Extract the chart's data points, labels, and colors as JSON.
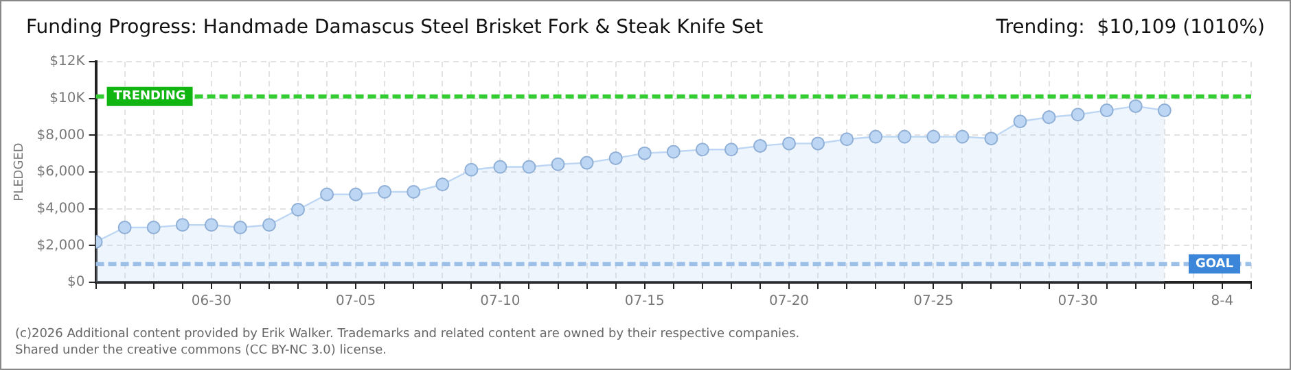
{
  "chart_data": {
    "type": "area",
    "title": "Funding Progress: Handmade Damascus Steel Brisket Fork & Steak Knife Set",
    "subtitle": "Trending:  $10,109 (1010%)",
    "ylabel": "PLEDGED",
    "x": [
      "--06-26",
      "--06-27",
      "--06-28",
      "--06-29",
      "--06-30",
      "--07-01",
      "--07-02",
      "--07-03",
      "--07-04",
      "--07-05",
      "--07-06",
      "--07-07",
      "--07-08",
      "--07-09",
      "--07-10",
      "--07-11",
      "--07-12",
      "--07-13",
      "--07-14",
      "--07-15",
      "--07-16",
      "--07-17",
      "--07-18",
      "--07-19",
      "--07-20",
      "--07-21",
      "--07-22",
      "--07-23",
      "--07-24",
      "--07-25",
      "--07-26",
      "--07-27",
      "--07-28",
      "--07-29",
      "--07-30",
      "--07-31",
      "--08-01",
      "--08-02"
    ],
    "series": [
      {
        "color": "#bcd6f3",
        "values": [
          2200,
          2980,
          2980,
          3120,
          3120,
          2980,
          3120,
          3950,
          4780,
          4780,
          4920,
          4920,
          5320,
          6120,
          6280,
          6280,
          6420,
          6500,
          6750,
          7020,
          7100,
          7220,
          7220,
          7420,
          7550,
          7550,
          7780,
          7920,
          7920,
          7920,
          7920,
          7820,
          8750,
          8980,
          9120,
          9350,
          9580,
          9350
        ]
      }
    ],
    "xlim": [
      "--06-26",
      "--08-05"
    ],
    "xticks": [
      {
        "value": "--06-26",
        "label": null
      },
      {
        "value": "--06-27",
        "label": null
      },
      {
        "value": "--06-28",
        "label": null
      },
      {
        "value": "--06-29",
        "label": null
      },
      {
        "value": "--06-30",
        "label": "06-30"
      },
      {
        "value": "--07-01",
        "label": null
      },
      {
        "value": "--07-02",
        "label": null
      },
      {
        "value": "--07-03",
        "label": null
      },
      {
        "value": "--07-04",
        "label": null
      },
      {
        "value": "--07-05",
        "label": "07-05"
      },
      {
        "value": "--07-06",
        "label": null
      },
      {
        "value": "--07-07",
        "label": null
      },
      {
        "value": "--07-08",
        "label": null
      },
      {
        "value": "--07-09",
        "label": null
      },
      {
        "value": "--07-10",
        "label": "07-10"
      },
      {
        "value": "--07-11",
        "label": null
      },
      {
        "value": "--07-12",
        "label": null
      },
      {
        "value": "--07-13",
        "label": null
      },
      {
        "value": "--07-14",
        "label": null
      },
      {
        "value": "--07-15",
        "label": "07-15"
      },
      {
        "value": "--07-16",
        "label": null
      },
      {
        "value": "--07-17",
        "label": null
      },
      {
        "value": "--07-18",
        "label": null
      },
      {
        "value": "--07-19",
        "label": null
      },
      {
        "value": "--07-20",
        "label": "07-20"
      },
      {
        "value": "--07-21",
        "label": null
      },
      {
        "value": "--07-22",
        "label": null
      },
      {
        "value": "--07-23",
        "label": null
      },
      {
        "value": "--07-24",
        "label": null
      },
      {
        "value": "--07-25",
        "label": "07-25"
      },
      {
        "value": "--07-26",
        "label": null
      },
      {
        "value": "--07-27",
        "label": null
      },
      {
        "value": "--07-28",
        "label": null
      },
      {
        "value": "--07-29",
        "label": null
      },
      {
        "value": "--07-30",
        "label": "07-30"
      },
      {
        "value": "--07-31",
        "label": null
      },
      {
        "value": "--08-01",
        "label": null
      },
      {
        "value": "--08-02",
        "label": null
      },
      {
        "value": "--08-03",
        "label": null
      },
      {
        "value": "--08-04",
        "label": "8-4"
      },
      {
        "value": "--08-05",
        "label": null
      }
    ],
    "ylim": [
      0,
      12000
    ],
    "yticks": [
      {
        "value": 0,
        "label": "$0"
      },
      {
        "value": 2000,
        "label": "$2,000"
      },
      {
        "value": 4000,
        "label": "$4,000"
      },
      {
        "value": 6000,
        "label": "$6,000"
      },
      {
        "value": 8000,
        "label": "$8,000"
      },
      {
        "value": 10000,
        "label": "$10K"
      },
      {
        "value": 12000,
        "label": "$12K"
      }
    ],
    "ref_lines": [
      {
        "axis": "y",
        "value": 10109,
        "label": "TRENDING",
        "color": "#33cc33",
        "line_style": "dashed"
      },
      {
        "axis": "y",
        "value": 1000,
        "label": "GOAL",
        "color": "#9cc0e8",
        "line_style": "dashed"
      }
    ],
    "grid": true,
    "marker": "circle",
    "line_style": "solid",
    "legend": false,
    "annotations": [
      "(c)2026 Additional content provided by Erik Walker. Trademarks and related content are owned by their respective companies.",
      "Shared under the creative commons (CC BY-NC 3.0) license."
    ]
  }
}
